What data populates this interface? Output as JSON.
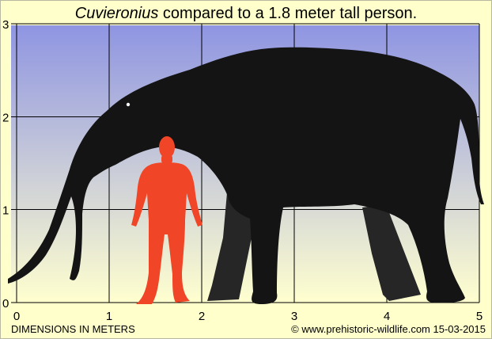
{
  "title": {
    "genus": "Cuvieronius",
    "rest": " compared to a 1.8 meter tall person."
  },
  "axes": {
    "x_ticks": [
      "0",
      "1",
      "2",
      "3",
      "4",
      "5"
    ],
    "y_ticks": [
      "0",
      "1",
      "2",
      "3"
    ],
    "xlim": [
      0,
      5
    ],
    "ylim": [
      0,
      3
    ],
    "x_unit_label": "DIMENSIONS IN METERS"
  },
  "figures": {
    "person_height_m": 1.8,
    "animal": "elephant-silhouette",
    "person": "human-silhouette"
  },
  "colors": {
    "background": "#ffffcc",
    "sky_top": "#8f95e2",
    "sky_bottom": "#ffffcf",
    "grid": "#000000",
    "animal": "#141414",
    "animal_far_legs": "#262626",
    "person": "#f04526"
  },
  "footer": {
    "unit_label": "DIMENSIONS IN METERS",
    "credit": "© www.prehistoric-wildlife.com 15-03-2015"
  }
}
